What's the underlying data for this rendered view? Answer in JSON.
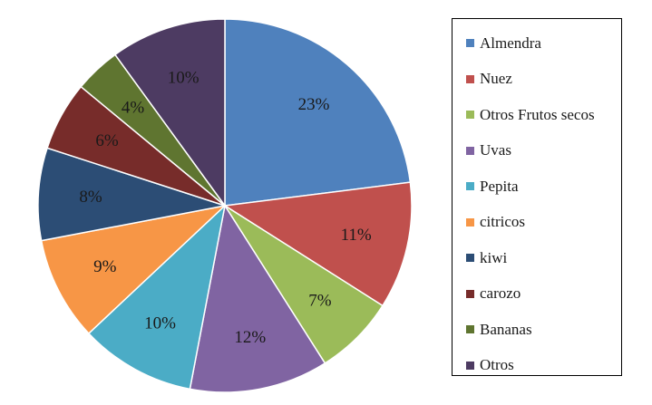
{
  "chart_data": {
    "type": "pie",
    "title": "",
    "start_angle_deg": 0,
    "direction": "clockwise",
    "legend_position": "right",
    "slices": [
      {
        "label": "Almendra",
        "value": 23,
        "display": "23%",
        "color": "#4f81bd"
      },
      {
        "label": "Nuez",
        "value": 11,
        "display": "11%",
        "color": "#c0504d"
      },
      {
        "label": "Otros Frutos secos",
        "value": 7,
        "display": "7%",
        "color": "#9bbb59"
      },
      {
        "label": "Uvas",
        "value": 12,
        "display": "12%",
        "color": "#8064a2"
      },
      {
        "label": "Pepita",
        "value": 10,
        "display": "10%",
        "color": "#4bacc6"
      },
      {
        "label": "citricos",
        "value": 9,
        "display": "9%",
        "color": "#f79646"
      },
      {
        "label": "kiwi",
        "value": 8,
        "display": "8%",
        "color": "#2c4d75"
      },
      {
        "label": "carozo",
        "value": 6,
        "display": "6%",
        "color": "#772c2a"
      },
      {
        "label": "Bananas",
        "value": 4,
        "display": "4%",
        "color": "#5f7530"
      },
      {
        "label": "Otros",
        "value": 10,
        "display": "10%",
        "color": "#4d3b62"
      }
    ]
  }
}
